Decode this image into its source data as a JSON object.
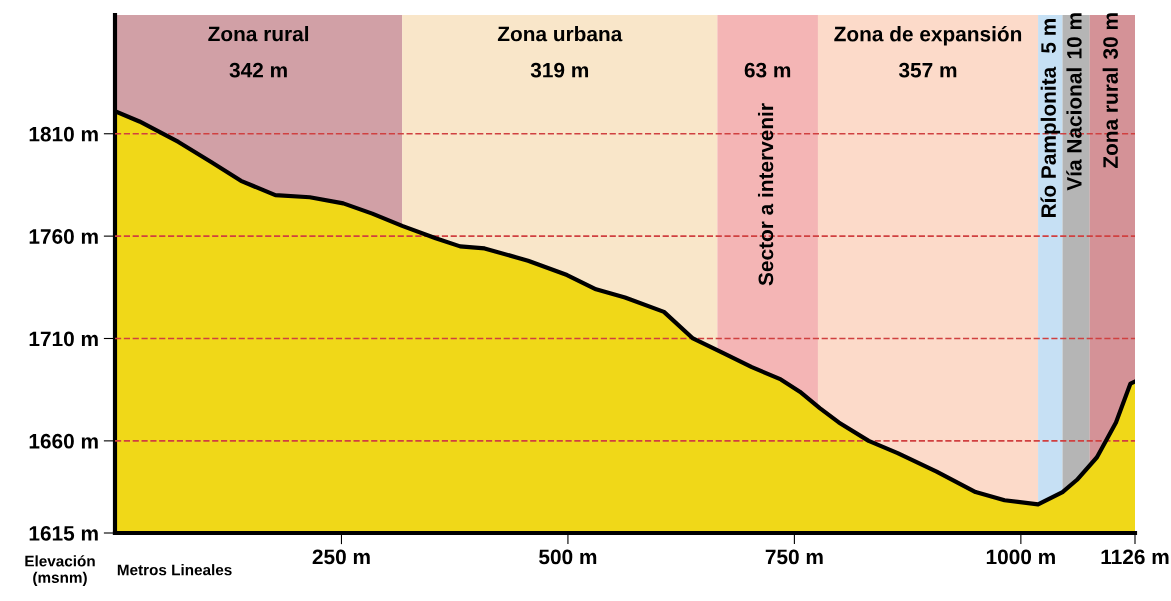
{
  "chart_data": {
    "type": "area",
    "xlabel": "Metros Lineales",
    "ylabel": "Elevación (msnm)",
    "x": [
      0,
      27,
      70,
      107,
      139,
      177,
      215,
      252,
      284,
      317,
      354,
      381,
      408,
      456,
      499,
      531,
      563,
      606,
      638,
      671,
      703,
      735,
      756,
      778,
      799,
      832,
      864,
      907,
      950,
      982,
      1019,
      1046,
      1062,
      1084,
      1105,
      1121,
      1126
    ],
    "series": [
      {
        "color": "#f0d818",
        "values": [
          1821,
          1816,
          1806,
          1796,
          1787,
          1780,
          1779,
          1776,
          1771,
          1765,
          1759,
          1755,
          1754,
          1748,
          1741,
          1734,
          1730,
          1723,
          1710,
          1703,
          1696,
          1690,
          1684,
          1676,
          1669,
          1660,
          1654,
          1645,
          1635,
          1631,
          1629,
          1635,
          1641,
          1652,
          1669,
          1688,
          1689
        ]
      }
    ],
    "xlim": [
      0,
      1126
    ],
    "ylim": [
      1615,
      1868
    ],
    "xticks": [
      {
        "value": 250,
        "label": "250 m"
      },
      {
        "value": 500,
        "label": "500 m"
      },
      {
        "value": 750,
        "label": "750 m"
      },
      {
        "value": 1000,
        "label": "1000 m"
      },
      {
        "value": 1126,
        "label": "1126 m"
      }
    ],
    "yticks": [
      {
        "value": 1615,
        "label": "1615 m"
      },
      {
        "value": 1660,
        "label": "1660 m"
      },
      {
        "value": 1710,
        "label": "1710 m"
      },
      {
        "value": 1760,
        "label": "1760 m"
      },
      {
        "value": 1810,
        "label": "1810 m"
      }
    ],
    "ref_lines": [
      {
        "axis": "y",
        "value": 1810,
        "color": "#d04040",
        "line_style": "dashed"
      },
      {
        "axis": "y",
        "value": 1760,
        "color": "#d04040",
        "line_style": "dashed"
      },
      {
        "axis": "y",
        "value": 1710,
        "color": "#d04040",
        "line_style": "dashed"
      },
      {
        "axis": "y",
        "value": 1660,
        "color": "#d04040",
        "line_style": "dashed"
      }
    ],
    "bands": [
      {
        "axis": "x",
        "from": 0,
        "to": 317,
        "label": "Zona rural",
        "color": "#c98f96"
      },
      {
        "axis": "x",
        "from": 317,
        "to": 665,
        "label": "Zona urbana",
        "color": "#f8e2c0"
      },
      {
        "axis": "x",
        "from": 665,
        "to": 776,
        "label": "Sector a intervenir",
        "color": "#f2a8a8"
      },
      {
        "axis": "x",
        "from": 776,
        "to": 1019,
        "label": "Zona de expansión",
        "color": "#fbd3c0"
      },
      {
        "axis": "x",
        "from": 1019,
        "to": 1046,
        "label": "Río Pamplonita",
        "color": "#bcdaf2"
      },
      {
        "axis": "x",
        "from": 1046,
        "to": 1076,
        "label": "Vía Nacional",
        "color": "#a8a8a8"
      },
      {
        "axis": "x",
        "from": 1076,
        "to": 1126,
        "label": "Zona rural",
        "color": "#cc7f85"
      }
    ],
    "annotations": [
      "342 m",
      "319 m",
      "63 m",
      "357 m",
      "5 m",
      "10 m",
      "30 m"
    ],
    "grid": false,
    "legend": false
  }
}
